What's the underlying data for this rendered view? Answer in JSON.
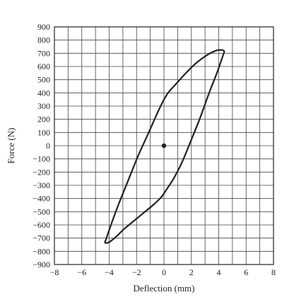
{
  "chart_data": {
    "type": "line",
    "xlabel": "Deflection (mm)",
    "ylabel": "Force (N)",
    "xlim": [
      -8,
      8
    ],
    "ylim": [
      -900,
      900
    ],
    "x_ticks": [
      -8,
      -6,
      -4,
      -2,
      0,
      2,
      4,
      6,
      8
    ],
    "x_tick_labels": [
      "−8",
      "−6",
      "−4",
      "−2",
      "0",
      "2",
      "4",
      "6",
      "8"
    ],
    "y_ticks": [
      900,
      800,
      700,
      600,
      500,
      400,
      300,
      200,
      100,
      0,
      -100,
      -200,
      -300,
      -400,
      -500,
      -600,
      -700,
      -800,
      -900
    ],
    "y_tick_labels": [
      "900",
      "800",
      "700",
      "600",
      "500",
      "400",
      "300",
      "200",
      "100",
      "0",
      "−100",
      "−200",
      "−300",
      "−400",
      "−500",
      "−600",
      "−700",
      "−800",
      "−900"
    ],
    "grid": true,
    "grid_x_step": 1,
    "grid_y_step": 100,
    "series": [
      {
        "x": [
          -4.2,
          -3.8,
          -3.3,
          -2.6,
          -1.9,
          -1.2,
          -0.6,
          -0.1,
          0.3,
          0.9,
          1.6,
          2.4,
          3.2,
          3.8,
          4.2,
          4.4,
          4.3,
          3.9,
          3.3,
          2.6,
          1.9,
          1.3,
          0.7,
          0.2,
          -0.2,
          -0.8,
          -1.5,
          -2.2,
          -2.9,
          -3.5,
          -4.0,
          -4.3,
          -4.2
        ],
        "y": [
          -700,
          -580,
          -440,
          -260,
          -80,
          80,
          220,
          330,
          400,
          470,
          550,
          630,
          690,
          720,
          725,
          715,
          680,
          560,
          400,
          200,
          20,
          -130,
          -250,
          -330,
          -390,
          -450,
          -510,
          -570,
          -630,
          -690,
          -730,
          -735,
          -700
        ]
      }
    ],
    "points": [
      {
        "x": 0,
        "y": 0
      }
    ],
    "line_color": "#222222"
  }
}
